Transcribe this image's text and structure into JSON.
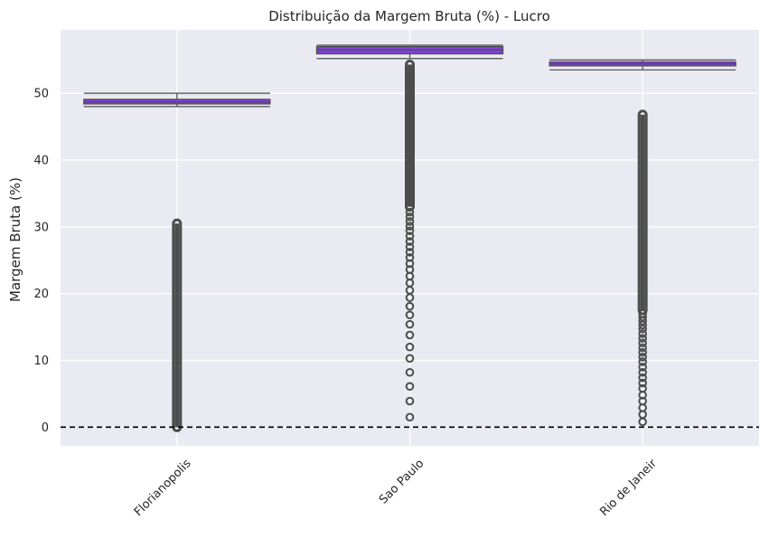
{
  "chart_data": {
    "type": "box",
    "title": "Distribuição da Margem Bruta (%) - Lucro",
    "xlabel": "",
    "ylabel": "Margem Bruta (%)",
    "ylim": [
      -2.8,
      59.5
    ],
    "yticks": [
      0,
      10,
      20,
      30,
      40,
      50
    ],
    "grid": true,
    "reference_line": {
      "y": 0,
      "style": "dashed",
      "color": "#000000"
    },
    "box_color": "#8040dd",
    "categories": [
      "Florianopolis",
      "Sao Paulo",
      "Rio de Janeir"
    ],
    "boxes": [
      {
        "name": "Florianopolis",
        "whisker_low": 48.0,
        "q1": 48.4,
        "median": 48.7,
        "q3": 49.1,
        "whisker_high": 50.0,
        "outlier_range": [
          0.0,
          30.5
        ]
      },
      {
        "name": "Sao Paulo",
        "whisker_low": 55.2,
        "q1": 55.9,
        "median": 56.5,
        "q3": 57.0,
        "whisker_high": 57.2,
        "outlier_range": [
          33.0,
          54.3
        ],
        "outliers": [
          1.5,
          3.9,
          6.1,
          8.2,
          10.3,
          12.0,
          13.8,
          15.4,
          16.8,
          18.1,
          19.4,
          20.5,
          21.6,
          22.6,
          23.6,
          24.5,
          25.4,
          26.2,
          27.0,
          27.8,
          28.6,
          29.4,
          30.1,
          30.8,
          31.5,
          32.2
        ]
      },
      {
        "name": "Rio de Janeir",
        "whisker_low": 53.5,
        "q1": 54.1,
        "median": 54.4,
        "q3": 54.7,
        "whisker_high": 55.0,
        "outlier_range": [
          17.5,
          46.8
        ],
        "outliers": [
          0.8,
          1.9,
          2.9,
          3.9,
          4.8,
          5.8,
          6.6,
          7.4,
          8.2,
          9.0,
          9.8,
          10.5,
          11.2,
          11.9,
          12.6,
          13.3,
          14.0,
          14.7,
          15.3,
          15.9,
          16.5,
          17.0
        ]
      }
    ]
  }
}
